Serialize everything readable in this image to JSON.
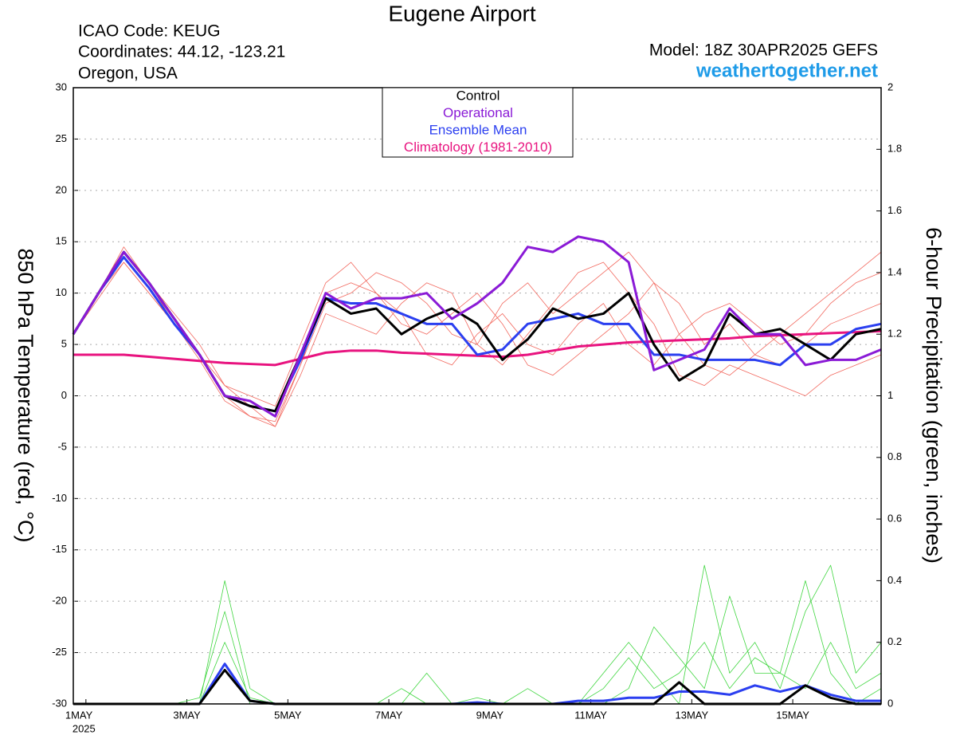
{
  "chart_data": {
    "type": "line",
    "title": "Eugene Airport",
    "info": [
      "ICAO Code: KEUG",
      "Coordinates: 44.12, -123.21",
      "Oregon, USA"
    ],
    "model": "Model: 18Z 30APR2025 GEFS",
    "site": "weathertogether.net",
    "ylabel": "850 hPa Temperature (red, °C)",
    "y2label": "6-hour Precipitation (green, inches)",
    "x": [
      0,
      12,
      24,
      36,
      48,
      60,
      72,
      84,
      96,
      108,
      120,
      132,
      144,
      156,
      168,
      180,
      192,
      204,
      216,
      228,
      240,
      252,
      264,
      276,
      288,
      300,
      312,
      324,
      336,
      348,
      360,
      372,
      384
    ],
    "xlim": [
      0,
      384
    ],
    "xticks": [
      {
        "value": 6,
        "label": "1MAY"
      },
      {
        "value": 54,
        "label": "3MAY"
      },
      {
        "value": 102,
        "label": "5MAY"
      },
      {
        "value": 150,
        "label": "7MAY"
      },
      {
        "value": 198,
        "label": "9MAY"
      },
      {
        "value": 246,
        "label": "11MAY"
      },
      {
        "value": 294,
        "label": "13MAY"
      },
      {
        "value": 342,
        "label": "15MAY"
      }
    ],
    "year_label": "2025",
    "ylim": [
      -30,
      30
    ],
    "yticks": [
      -30,
      -25,
      -20,
      -15,
      -10,
      -5,
      0,
      5,
      10,
      15,
      20,
      25,
      30
    ],
    "y2lim": [
      0,
      2
    ],
    "y2ticks": [
      0,
      0.2,
      0.4,
      0.6,
      0.8,
      1,
      1.2,
      1.4,
      1.6,
      1.8,
      2
    ],
    "grid": true,
    "legend": "top-center",
    "series": [
      {
        "name": "Control",
        "color": "#000000",
        "values": [
          6,
          10,
          14,
          11,
          7.5,
          4,
          0,
          -1,
          -1.5,
          4,
          9.5,
          8,
          8.5,
          6,
          7.5,
          8.5,
          7,
          3.5,
          5.5,
          8.5,
          7.5,
          8,
          10,
          5,
          1.5,
          3,
          8,
          6,
          6.5,
          5,
          3.5,
          6,
          6.5
        ]
      },
      {
        "name": "Operational",
        "color": "#8a1ad6",
        "values": [
          6,
          10,
          14,
          11,
          7.5,
          4,
          0,
          -0.5,
          -2,
          4,
          10,
          8.5,
          9.5,
          9.5,
          10,
          7.5,
          9,
          11,
          14.5,
          14,
          15.5,
          15,
          13,
          2.5,
          3.5,
          4.5,
          8.5,
          6,
          6,
          3,
          3.5,
          3.5,
          4.5
        ]
      },
      {
        "name": "Ensemble Mean",
        "color": "#2b3ff0",
        "values": [
          6,
          10,
          13.5,
          10.5,
          7,
          4,
          0,
          -1,
          -1.5,
          3.5,
          9.5,
          9,
          9,
          8,
          7,
          7,
          4,
          4.5,
          7,
          7.5,
          8,
          7,
          7,
          4,
          4,
          3.5,
          3.5,
          3.5,
          3,
          5,
          5,
          6.5,
          7
        ]
      },
      {
        "name": "Climatology (1981-2010)",
        "color": "#e8137f",
        "values": [
          4,
          4,
          4,
          3.8,
          3.6,
          3.4,
          3.2,
          3.1,
          3,
          3.6,
          4.2,
          4.4,
          4.4,
          4.2,
          4.1,
          4,
          3.9,
          3.8,
          4,
          4.4,
          4.8,
          5,
          5.2,
          5.3,
          5.4,
          5.5,
          5.6,
          5.8,
          5.9,
          6,
          6.1,
          6.2,
          6.3
        ]
      }
    ],
    "precip_series": [
      {
        "color": "#2b3ff0",
        "axis": "y2",
        "values": [
          0,
          0,
          0,
          0,
          0,
          0,
          0.13,
          0.01,
          0,
          0,
          0,
          0,
          0,
          0,
          0,
          0,
          0.005,
          0,
          0,
          0,
          0.01,
          0.01,
          0.02,
          0.02,
          0.04,
          0.04,
          0.03,
          0.06,
          0.04,
          0.06,
          0.03,
          0.01,
          0.01
        ]
      },
      {
        "color": "#000000",
        "axis": "y2",
        "values": [
          0,
          0,
          0,
          0,
          0,
          0,
          0.11,
          0.01,
          0,
          0,
          0,
          0,
          0,
          0,
          0,
          0,
          0,
          0,
          0,
          0,
          0,
          0,
          0,
          0,
          0.07,
          0,
          0,
          0,
          0,
          0.06,
          0.02,
          0,
          0
        ]
      }
    ],
    "ensemble_members": [
      {
        "color": "#f2685e",
        "values": [
          6,
          10,
          14.5,
          11,
          7,
          3.5,
          -0.5,
          -2,
          -2.5,
          3,
          9,
          10,
          12,
          11,
          9,
          6,
          5,
          9,
          11,
          8,
          10,
          12,
          14,
          11,
          6,
          3,
          2,
          4,
          6,
          8,
          10,
          12,
          14
        ]
      },
      {
        "color": "#f2685e",
        "values": [
          6,
          9.5,
          13,
          10,
          7,
          4,
          1,
          0,
          -1,
          5,
          11,
          13,
          10,
          8,
          4,
          3,
          6,
          8,
          5,
          4,
          7,
          9,
          5,
          3,
          6,
          8,
          9,
          7,
          5,
          6,
          9,
          11,
          12
        ]
      },
      {
        "color": "#f2685e",
        "values": [
          6,
          10,
          14,
          11,
          8,
          5,
          1,
          -1,
          -3,
          2,
          8,
          7,
          6,
          9,
          11,
          10,
          5,
          3,
          6,
          9,
          12,
          13,
          10,
          7,
          2,
          1,
          3,
          2,
          1,
          0,
          2,
          3,
          4
        ]
      },
      {
        "color": "#f2685e",
        "values": [
          6,
          10,
          13,
          10,
          7,
          4,
          0,
          -2,
          -3,
          3,
          10,
          11,
          10,
          7,
          6,
          8,
          10,
          7,
          3,
          2,
          4,
          6,
          8,
          11,
          9,
          5,
          7,
          4,
          3,
          5,
          7,
          8,
          9
        ]
      },
      {
        "color": "#3fd63f",
        "axis": "y2",
        "values": [
          0,
          0,
          0,
          0,
          0,
          0,
          0.4,
          0.05,
          0,
          0,
          0,
          0,
          0,
          0.05,
          0,
          0,
          0,
          0,
          0,
          0,
          0,
          0.1,
          0.2,
          0.1,
          0,
          0.45,
          0.1,
          0.2,
          0.05,
          0.3,
          0.45,
          0.1,
          0.2
        ]
      },
      {
        "color": "#3fd63f",
        "axis": "y2",
        "values": [
          0,
          0,
          0,
          0,
          0,
          0.02,
          0.3,
          0,
          0,
          0,
          0,
          0,
          0,
          0,
          0,
          0,
          0.02,
          0,
          0.05,
          0,
          0,
          0,
          0.05,
          0.25,
          0.15,
          0.05,
          0.35,
          0.1,
          0.1,
          0.4,
          0.1,
          0,
          0.05
        ]
      },
      {
        "color": "#3fd63f",
        "axis": "y2",
        "values": [
          0,
          0,
          0,
          0,
          0,
          0,
          0.2,
          0.02,
          0,
          0,
          0,
          0,
          0,
          0,
          0.1,
          0,
          0,
          0,
          0,
          0,
          0,
          0.05,
          0.15,
          0.05,
          0.1,
          0.2,
          0.05,
          0.15,
          0.1,
          0.05,
          0.2,
          0.05,
          0.1
        ]
      }
    ]
  }
}
